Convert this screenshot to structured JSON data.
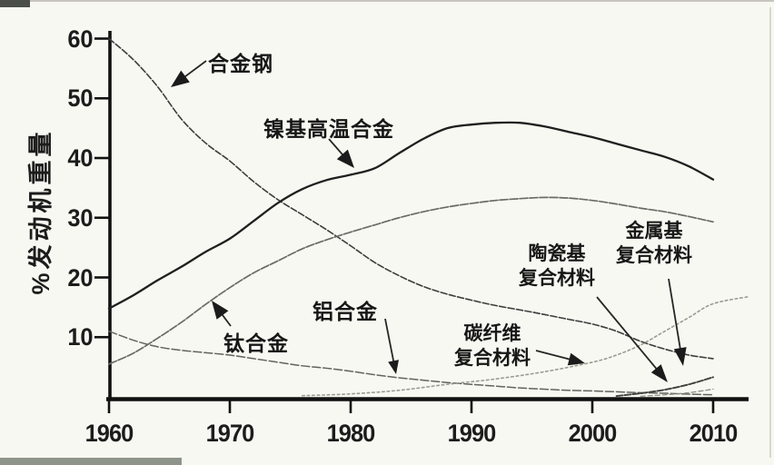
{
  "chart_data": {
    "type": "line",
    "title": "",
    "xlabel": "",
    "ylabel": "%发动机重量",
    "grid": false,
    "legend": "none (labels annotated with arrows on plot)",
    "xlim": [
      1959,
      2013
    ],
    "ylim": [
      0,
      62
    ],
    "x_ticks": [
      "1960",
      "1970",
      "1980",
      "1990",
      "2000",
      "2010"
    ],
    "y_ticks": [
      "60",
      "50",
      "40",
      "30",
      "20",
      "10"
    ],
    "series": [
      {
        "name": "合金钢",
        "color": "#3d3d3d",
        "width": 1.6,
        "dash": "7 2.5",
        "points": [
          [
            1960,
            60
          ],
          [
            1962,
            56.5
          ],
          [
            1964,
            52
          ],
          [
            1966,
            46.5
          ],
          [
            1968,
            42.5
          ],
          [
            1970,
            39.5
          ],
          [
            1972,
            36
          ],
          [
            1974,
            33
          ],
          [
            1976,
            30.5
          ],
          [
            1978,
            28
          ],
          [
            1980,
            25.3
          ],
          [
            1982,
            22.5
          ],
          [
            1984,
            20.3
          ],
          [
            1986,
            18.5
          ],
          [
            1988,
            17.2
          ],
          [
            1990,
            16.2
          ],
          [
            1992,
            15.3
          ],
          [
            1995,
            14.2
          ],
          [
            1998,
            13
          ],
          [
            2000,
            12.2
          ],
          [
            2002,
            11
          ],
          [
            2004,
            9.3
          ],
          [
            2006,
            8
          ],
          [
            2008,
            7
          ],
          [
            2010,
            6.4
          ]
        ]
      },
      {
        "name": "镍基高温合金",
        "color": "#1f1f1f",
        "width": 2.3,
        "dash": "",
        "points": [
          [
            1960,
            14.8
          ],
          [
            1962,
            17
          ],
          [
            1964,
            19.5
          ],
          [
            1966,
            21.8
          ],
          [
            1968,
            24.3
          ],
          [
            1970,
            26.5
          ],
          [
            1972,
            29.5
          ],
          [
            1974,
            32.5
          ],
          [
            1976,
            34.8
          ],
          [
            1978,
            36.3
          ],
          [
            1980,
            37.2
          ],
          [
            1982,
            38.3
          ],
          [
            1984,
            40.8
          ],
          [
            1986,
            43.2
          ],
          [
            1988,
            45
          ],
          [
            1990,
            45.6
          ],
          [
            1992,
            45.9
          ],
          [
            1994,
            45.9
          ],
          [
            1996,
            45.3
          ],
          [
            1998,
            44.4
          ],
          [
            2000,
            43.5
          ],
          [
            2002,
            42.4
          ],
          [
            2004,
            41.3
          ],
          [
            2006,
            40.2
          ],
          [
            2008,
            38.6
          ],
          [
            2010,
            36.4
          ]
        ]
      },
      {
        "name": "钛合金",
        "color": "#6b6b68",
        "width": 1.7,
        "dash": "9 2",
        "points": [
          [
            1960,
            5.5
          ],
          [
            1962,
            7.3
          ],
          [
            1964,
            9.8
          ],
          [
            1966,
            12.5
          ],
          [
            1968,
            15.5
          ],
          [
            1970,
            18.3
          ],
          [
            1972,
            20.8
          ],
          [
            1974,
            22.8
          ],
          [
            1976,
            24.8
          ],
          [
            1978,
            26.3
          ],
          [
            1980,
            27.6
          ],
          [
            1982,
            28.8
          ],
          [
            1984,
            30
          ],
          [
            1986,
            31
          ],
          [
            1988,
            31.8
          ],
          [
            1990,
            32.4
          ],
          [
            1992,
            32.9
          ],
          [
            1994,
            33.2
          ],
          [
            1996,
            33.4
          ],
          [
            1998,
            33.3
          ],
          [
            2000,
            32.9
          ],
          [
            2002,
            32.3
          ],
          [
            2004,
            31.6
          ],
          [
            2006,
            31
          ],
          [
            2008,
            30.2
          ],
          [
            2010,
            29.3
          ]
        ]
      },
      {
        "name": "铝合金",
        "color": "#63635f",
        "width": 1.5,
        "dash": "9 3",
        "points": [
          [
            1960,
            11
          ],
          [
            1962,
            9.5
          ],
          [
            1964,
            8.4
          ],
          [
            1966,
            7.8
          ],
          [
            1968,
            7.4
          ],
          [
            1970,
            7
          ],
          [
            1972,
            6.4
          ],
          [
            1974,
            5.8
          ],
          [
            1976,
            5.2
          ],
          [
            1978,
            4.8
          ],
          [
            1980,
            4.3
          ],
          [
            1982,
            3.7
          ],
          [
            1984,
            3.2
          ],
          [
            1986,
            2.8
          ],
          [
            1988,
            2.4
          ],
          [
            1990,
            2.1
          ],
          [
            1992,
            1.8
          ],
          [
            1994,
            1.5
          ],
          [
            1996,
            1.3
          ],
          [
            1998,
            1.1
          ],
          [
            2000,
            1
          ],
          [
            2002,
            0.85
          ],
          [
            2004,
            0.7
          ],
          [
            2006,
            0.6
          ],
          [
            2008,
            0.45
          ],
          [
            2010,
            0.35
          ]
        ]
      },
      {
        "name": "碳纤维复合材料",
        "color": "#9b9b93",
        "width": 1.6,
        "dash": "2.5 3",
        "points": [
          [
            1976,
            0.2
          ],
          [
            1980,
            0.5
          ],
          [
            1984,
            1.1
          ],
          [
            1988,
            2.1
          ],
          [
            1992,
            3
          ],
          [
            1996,
            4.2
          ],
          [
            2000,
            5.8
          ],
          [
            2002,
            7
          ],
          [
            2004,
            8.7
          ],
          [
            2006,
            11
          ],
          [
            2008,
            13.3
          ],
          [
            2010,
            15.6
          ],
          [
            2013,
            16.8
          ]
        ]
      },
      {
        "name": "陶瓷基复合材料",
        "color": "#3f3f3c",
        "width": 1.9,
        "dash": "7 2",
        "points": [
          [
            2002,
            0.15
          ],
          [
            2004,
            0.6
          ],
          [
            2006,
            1.2
          ],
          [
            2008,
            2.1
          ],
          [
            2010,
            3.3
          ]
        ]
      },
      {
        "name": "金属基复合材料",
        "color": "#8e8e86",
        "width": 1.3,
        "dash": "5 3",
        "points": [
          [
            2004,
            0.1
          ],
          [
            2006,
            0.35
          ],
          [
            2008,
            0.7
          ],
          [
            2010,
            1.3
          ]
        ]
      }
    ],
    "annotations": [
      {
        "text": "合金钢",
        "arrow": [
          227,
          67,
          188,
          96
        ],
        "head": [
          20,
          8
        ]
      },
      {
        "text": "镍基高温合金",
        "arrow": [
          362,
          153,
          390,
          185
        ],
        "head": [
          20,
          8
        ]
      },
      {
        "text": "钛合金",
        "arrow": [
          254,
          359,
          233,
          331
        ],
        "head": [
          20,
          8
        ]
      },
      {
        "text": "铝合金",
        "arrow": [
          424,
          351,
          436,
          412
        ],
        "head": [
          15,
          6
        ]
      },
      {
        "text": "碳纤维\n复合材料",
        "arrow": [
          590,
          386,
          644,
          400
        ],
        "head": [
          18,
          7
        ]
      },
      {
        "text": "陶瓷基\n复合材料",
        "arrow": [
          657,
          327,
          735,
          421
        ],
        "head": [
          20,
          7
        ]
      },
      {
        "text": "金属基\n复合材料",
        "arrow": [
          736,
          307,
          752,
          403
        ],
        "head": [
          20,
          7
        ]
      }
    ],
    "axis_color": "#111111"
  }
}
